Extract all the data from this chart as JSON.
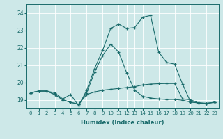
{
  "xlabel": "Humidex (Indice chaleur)",
  "ylabel": "",
  "xlim": [
    -0.5,
    23.5
  ],
  "ylim": [
    18.5,
    24.5
  ],
  "yticks": [
    19,
    20,
    21,
    22,
    23,
    24
  ],
  "xticks": [
    0,
    1,
    2,
    3,
    4,
    5,
    6,
    7,
    8,
    9,
    10,
    11,
    12,
    13,
    14,
    15,
    16,
    17,
    18,
    19,
    20,
    21,
    22,
    23
  ],
  "bg_color": "#cde8e8",
  "line_color": "#1a6b6b",
  "grid_color": "#ffffff",
  "series": [
    [
      19.4,
      19.5,
      19.5,
      19.3,
      19.0,
      18.85,
      18.75,
      19.3,
      19.45,
      19.55,
      19.6,
      19.65,
      19.7,
      19.75,
      19.85,
      19.9,
      19.92,
      19.93,
      19.93,
      19.05,
      19.0,
      18.82,
      18.8,
      18.85
    ],
    [
      19.4,
      19.5,
      19.5,
      19.3,
      19.0,
      18.85,
      18.75,
      19.4,
      20.6,
      21.55,
      22.2,
      21.75,
      20.55,
      19.55,
      19.2,
      19.1,
      19.05,
      19.02,
      19.02,
      18.97,
      18.87,
      18.82,
      18.8,
      18.85
    ],
    [
      19.4,
      19.5,
      19.5,
      19.4,
      19.05,
      19.3,
      18.65,
      19.55,
      20.8,
      21.85,
      23.1,
      23.35,
      23.1,
      23.15,
      23.75,
      23.85,
      21.75,
      21.15,
      21.05,
      19.9,
      18.88,
      18.82,
      18.78,
      18.87
    ]
  ]
}
